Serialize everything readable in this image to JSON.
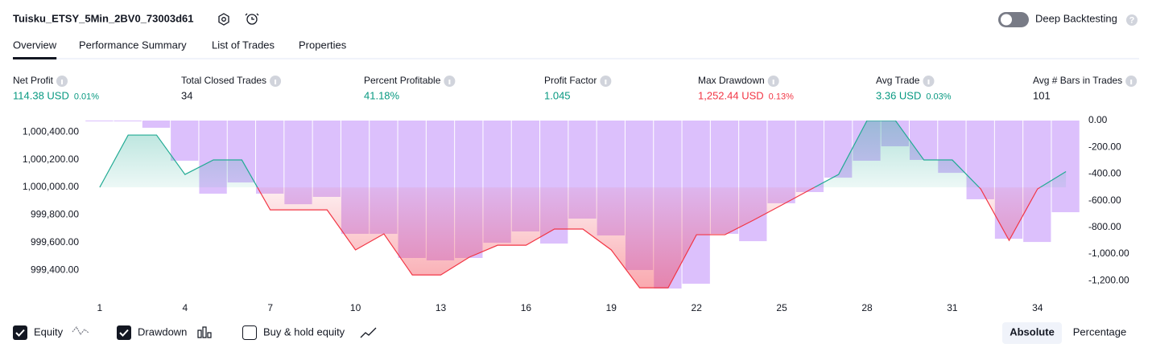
{
  "header": {
    "title": "Tuisku_ETSY_5Min_2BV0_73003d61",
    "deep_backtesting": "Deep Backtesting"
  },
  "tabs": [
    "Overview",
    "Performance Summary",
    "List of Trades",
    "Properties"
  ],
  "metrics": [
    {
      "label": "Net Profit",
      "value": "114.38 USD",
      "percent": "0.01%",
      "color": "#089981"
    },
    {
      "label": "Total Closed Trades",
      "value": "34",
      "color": "#131722"
    },
    {
      "label": "Percent Profitable",
      "value": "41.18%",
      "color": "#089981"
    },
    {
      "label": "Profit Factor",
      "value": "1.045",
      "color": "#089981"
    },
    {
      "label": "Max Drawdown",
      "value": "1,252.44 USD",
      "percent": "0.13%",
      "color": "#f23645"
    },
    {
      "label": "Avg Trade",
      "value": "3.36 USD",
      "percent": "0.03%",
      "color": "#089981"
    },
    {
      "label": "Avg # Bars in Trades",
      "value": "101",
      "color": "#131722"
    }
  ],
  "chart_data": {
    "type": "combo",
    "x": [
      1,
      2,
      3,
      4,
      5,
      6,
      7,
      8,
      9,
      10,
      11,
      12,
      13,
      14,
      15,
      16,
      17,
      18,
      19,
      20,
      21,
      22,
      23,
      24,
      25,
      26,
      27,
      28,
      29,
      30,
      31,
      32,
      33,
      34,
      35
    ],
    "xlim": [
      0.55,
      35.45
    ],
    "xticks": [
      1,
      4,
      7,
      10,
      13,
      16,
      19,
      22,
      25,
      28,
      31,
      34
    ],
    "ylim": [
      999233,
      1000483
    ],
    "yticks": [
      {
        "value": 999400,
        "label": "999,400.00"
      },
      {
        "value": 999600,
        "label": "999,600.00"
      },
      {
        "value": 999800,
        "label": "999,800.00"
      },
      {
        "value": 1000000,
        "label": "1,000,000.00"
      },
      {
        "value": 1000200,
        "label": "1,000,200.00"
      },
      {
        "value": 1000400,
        "label": "1,000,400.00"
      }
    ],
    "y2lim": [
      -1295,
      0
    ],
    "y2ticks": [
      {
        "value": 0,
        "label": "0.00"
      },
      {
        "value": -200,
        "label": "-200.00"
      },
      {
        "value": -400,
        "label": "-400.00"
      },
      {
        "value": -600,
        "label": "-600.00"
      },
      {
        "value": -800,
        "label": "-800.00"
      },
      {
        "value": -1000,
        "label": "-1,000.00"
      },
      {
        "value": -1200,
        "label": "-1,200.00"
      }
    ],
    "series": [
      {
        "name": "Equity",
        "color": "#22ab94",
        "negative_color": "#f23645",
        "values": [
          1000000,
          1000378,
          1000378,
          1000093,
          1000198,
          1000198,
          999837,
          999837,
          999837,
          999547,
          999663,
          999366,
          999366,
          999494,
          999581,
          999581,
          999698,
          999698,
          999547,
          999273,
          999273,
          999657,
          999657,
          999762,
          999872,
          999983,
          1000093,
          1000483,
          1000483,
          1000198,
          1000198,
          999988,
          999616,
          999988,
          1000114
        ]
      },
      {
        "name": "Drawdown",
        "color": "#dcc0fc",
        "axis": "y2",
        "values": [
          0,
          0,
          -54,
          -301,
          -548,
          -464,
          -548,
          -627,
          -572,
          -849,
          -849,
          -1030,
          -1048,
          -1030,
          -916,
          -831,
          -922,
          -735,
          -861,
          -1120,
          -1259,
          -1223,
          -849,
          -904,
          -620,
          -536,
          -428,
          -301,
          -193,
          -295,
          -392,
          -590,
          -886,
          -910,
          -687
        ]
      }
    ],
    "buy_hold_label": "Buy & hold equity"
  },
  "mode_buttons": [
    "Absolute",
    "Percentage"
  ]
}
